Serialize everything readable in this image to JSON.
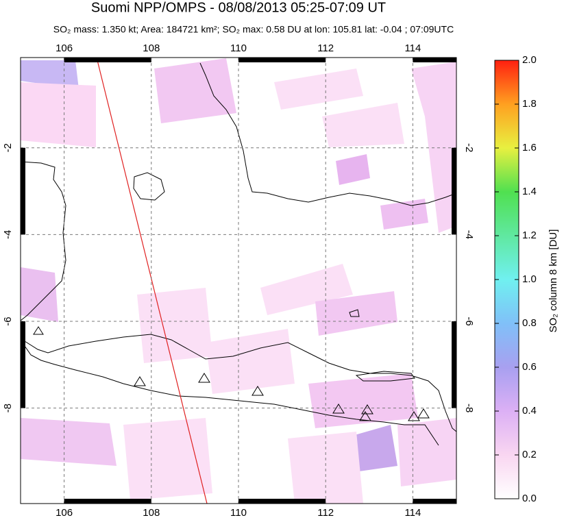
{
  "map": {
    "title": "Suomi NPP/OMPS - 08/08/2013 05:25-07:09 UT",
    "subtitle": "SO₂ mass: 1.350 kt; Area: 184721 km²; SO₂ max: 0.58 DU at lon: 105.81 lat: -0.04 ; 07:09UTC",
    "lonlim": [
      105,
      115
    ],
    "latlim": [
      -10.2,
      0.08
    ],
    "lonticks": [
      106,
      108,
      110,
      112,
      114
    ],
    "latticks": [
      -2,
      -4,
      -6,
      -8
    ],
    "colorbar": {
      "label": "SO₂ column 8 km [DU]",
      "lim": [
        0,
        2
      ],
      "ticks": [
        {
          "value": 0,
          "label": "0.0"
        },
        {
          "value": 0.2,
          "label": "0.2"
        },
        {
          "value": 0.4,
          "label": "0.4"
        },
        {
          "value": 0.6,
          "label": "0.6"
        },
        {
          "value": 0.8,
          "label": "0.8"
        },
        {
          "value": 1,
          "label": "1.0"
        },
        {
          "value": 1.2,
          "label": "1.2"
        },
        {
          "value": 1.4,
          "label": "1.4"
        },
        {
          "value": 1.6,
          "label": "1.6"
        },
        {
          "value": 1.8,
          "label": "1.8"
        },
        {
          "value": 2,
          "label": "2.0"
        }
      ]
    }
  }
}
